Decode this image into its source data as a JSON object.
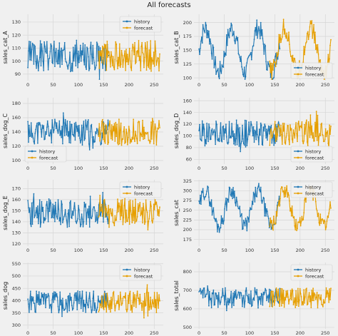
{
  "figure": {
    "title": "All forecasts"
  },
  "colors": {
    "history": "#1f77b4",
    "forecast": "#e69f00",
    "background": "#f0f0f0",
    "grid": "#d6d6d6"
  },
  "chart_data": [
    {
      "type": "line",
      "ylabel": "sales_cat_A",
      "xlim": [
        -10,
        268
      ],
      "ylim": [
        85,
        136
      ],
      "xticks": [
        0,
        50,
        100,
        150,
        200,
        250
      ],
      "yticks": [
        90,
        100,
        110,
        120,
        130
      ],
      "legend": "top-right",
      "grid": true,
      "history_range": [
        0,
        160
      ],
      "forecast_range": [
        140,
        262
      ],
      "shape": "noisy",
      "base": 104,
      "amp": 12,
      "seed": 3,
      "series": [
        {
          "name": "history"
        },
        {
          "name": "forecast"
        }
      ]
    },
    {
      "type": "line",
      "ylabel": "sales_cat_B",
      "xlim": [
        -10,
        268
      ],
      "ylim": [
        95,
        215
      ],
      "xticks": [
        0,
        50,
        100,
        150,
        200,
        250
      ],
      "yticks": [
        100,
        125,
        150,
        175,
        200
      ],
      "legend": "bottom-right",
      "grid": true,
      "history_range": [
        0,
        160
      ],
      "forecast_range": [
        140,
        262
      ],
      "shape": "seasonal",
      "base": 150,
      "amp": 40,
      "seed": 7,
      "series": [
        {
          "name": "history"
        },
        {
          "name": "forecast"
        }
      ]
    },
    {
      "type": "line",
      "ylabel": "sales_dog_C",
      "xlim": [
        -10,
        268
      ],
      "ylim": [
        95,
        188
      ],
      "xticks": [
        0,
        50,
        100,
        150,
        200,
        250
      ],
      "yticks": [
        100,
        120,
        140,
        160,
        180
      ],
      "legend": "bottom-left",
      "grid": true,
      "history_range": [
        0,
        160
      ],
      "forecast_range": [
        140,
        262
      ],
      "shape": "noisy",
      "base": 140,
      "amp": 18,
      "seed": 11,
      "series": [
        {
          "name": "history"
        },
        {
          "name": "forecast"
        }
      ]
    },
    {
      "type": "line",
      "ylabel": "sales_dog_D",
      "xlim": [
        -10,
        268
      ],
      "ylim": [
        52,
        165
      ],
      "xticks": [
        0,
        50,
        100,
        150,
        200,
        250
      ],
      "yticks": [
        60,
        80,
        100,
        120,
        140,
        160
      ],
      "legend": "bottom-right",
      "grid": true,
      "history_range": [
        0,
        160
      ],
      "forecast_range": [
        140,
        262
      ],
      "shape": "noisy",
      "base": 105,
      "amp": 22,
      "seed": 19,
      "series": [
        {
          "name": "history"
        },
        {
          "name": "forecast"
        }
      ]
    },
    {
      "type": "line",
      "ylabel": "sales_dog_E",
      "xlim": [
        -10,
        268
      ],
      "ylim": [
        118,
        178
      ],
      "xticks": [
        0,
        50,
        100,
        150,
        200,
        250
      ],
      "yticks": [
        120,
        130,
        140,
        150,
        160,
        170
      ],
      "legend": "top-right",
      "grid": true,
      "history_range": [
        0,
        160
      ],
      "forecast_range": [
        140,
        262
      ],
      "shape": "noisy",
      "base": 148,
      "amp": 13,
      "seed": 23,
      "series": [
        {
          "name": "history"
        },
        {
          "name": "forecast"
        }
      ]
    },
    {
      "type": "line",
      "ylabel": "sales_cat",
      "xlim": [
        -10,
        268
      ],
      "ylim": [
        158,
        328
      ],
      "xticks": [
        0,
        50,
        100,
        150,
        200,
        250
      ],
      "yticks": [
        175,
        200,
        225,
        250,
        275,
        300,
        325
      ],
      "legend": "top-right",
      "grid": true,
      "history_range": [
        0,
        160
      ],
      "forecast_range": [
        140,
        262
      ],
      "shape": "seasonal",
      "base": 255,
      "amp": 45,
      "seed": 29,
      "series": [
        {
          "name": "history"
        },
        {
          "name": "forecast"
        }
      ]
    },
    {
      "type": "line",
      "ylabel": "sales_dog",
      "xlim": [
        -10,
        268
      ],
      "ylim": [
        285,
        555
      ],
      "xticks": [
        0,
        50,
        100,
        150,
        200,
        250
      ],
      "yticks": [
        300,
        350,
        400,
        450,
        500,
        550
      ],
      "legend": "top-right",
      "grid": true,
      "history_range": [
        0,
        160
      ],
      "forecast_range": [
        140,
        262
      ],
      "shape": "noisy",
      "base": 395,
      "amp": 45,
      "seed": 31,
      "series": [
        {
          "name": "history"
        },
        {
          "name": "forecast"
        }
      ]
    },
    {
      "type": "line",
      "ylabel": "sales_total",
      "xlim": [
        -10,
        268
      ],
      "ylim": [
        492,
        850
      ],
      "xticks": [
        0,
        50,
        100,
        150,
        200,
        250
      ],
      "yticks": [
        500,
        600,
        700,
        800
      ],
      "legend": "top-right",
      "grid": true,
      "history_range": [
        0,
        160
      ],
      "forecast_range": [
        140,
        262
      ],
      "shape": "noisy",
      "base": 660,
      "amp": 55,
      "seed": 37,
      "series": [
        {
          "name": "history"
        },
        {
          "name": "forecast"
        }
      ]
    }
  ]
}
